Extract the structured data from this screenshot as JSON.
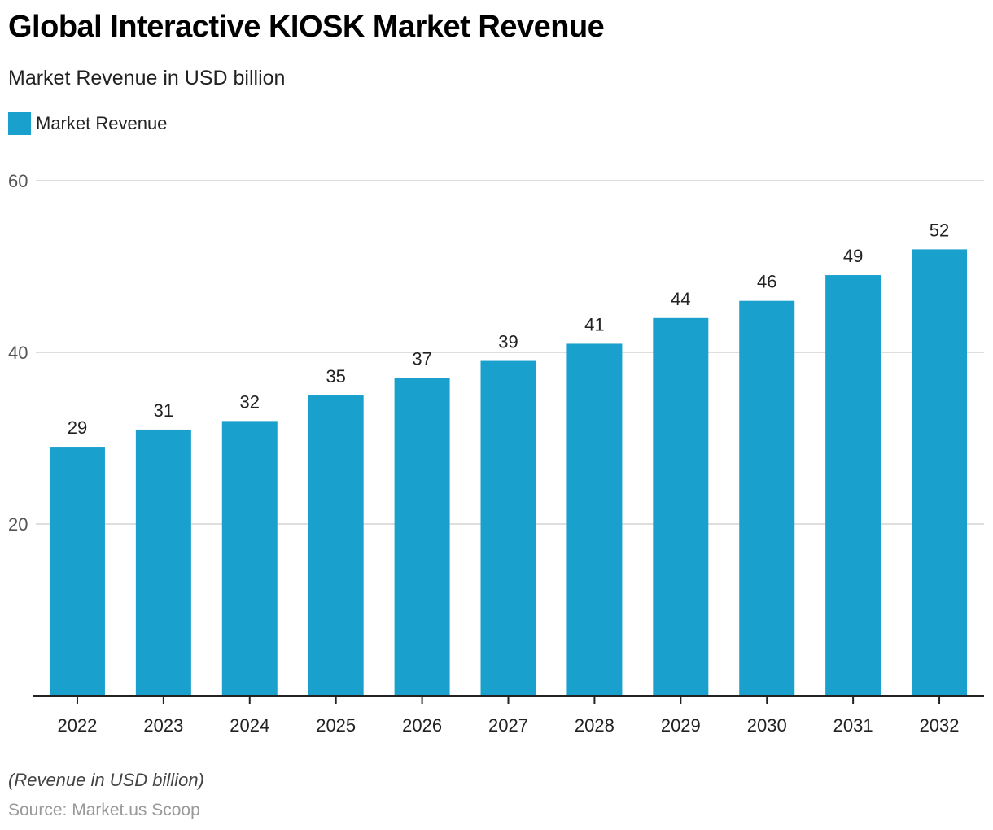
{
  "chart_data": {
    "type": "bar",
    "title": "Global Interactive KIOSK Market Revenue",
    "subtitle": "Market Revenue in USD billion",
    "legend": [
      {
        "label": "Market Revenue",
        "color": "#1aa0cd"
      }
    ],
    "legend_position": "top-left",
    "categories": [
      "2022",
      "2023",
      "2024",
      "2025",
      "2026",
      "2027",
      "2028",
      "2029",
      "2030",
      "2031",
      "2032"
    ],
    "series": [
      {
        "name": "Market Revenue",
        "values": [
          29,
          31,
          32,
          35,
          37,
          39,
          41,
          44,
          46,
          49,
          52
        ]
      }
    ],
    "xlabel": "",
    "ylabel": "",
    "ylim": [
      0,
      60
    ],
    "yticks": [
      20,
      40,
      60
    ],
    "grid": true,
    "bar_color": "#1aa0cd",
    "note": "(Revenue in USD billion)",
    "source": "Source: Market.us Scoop"
  }
}
